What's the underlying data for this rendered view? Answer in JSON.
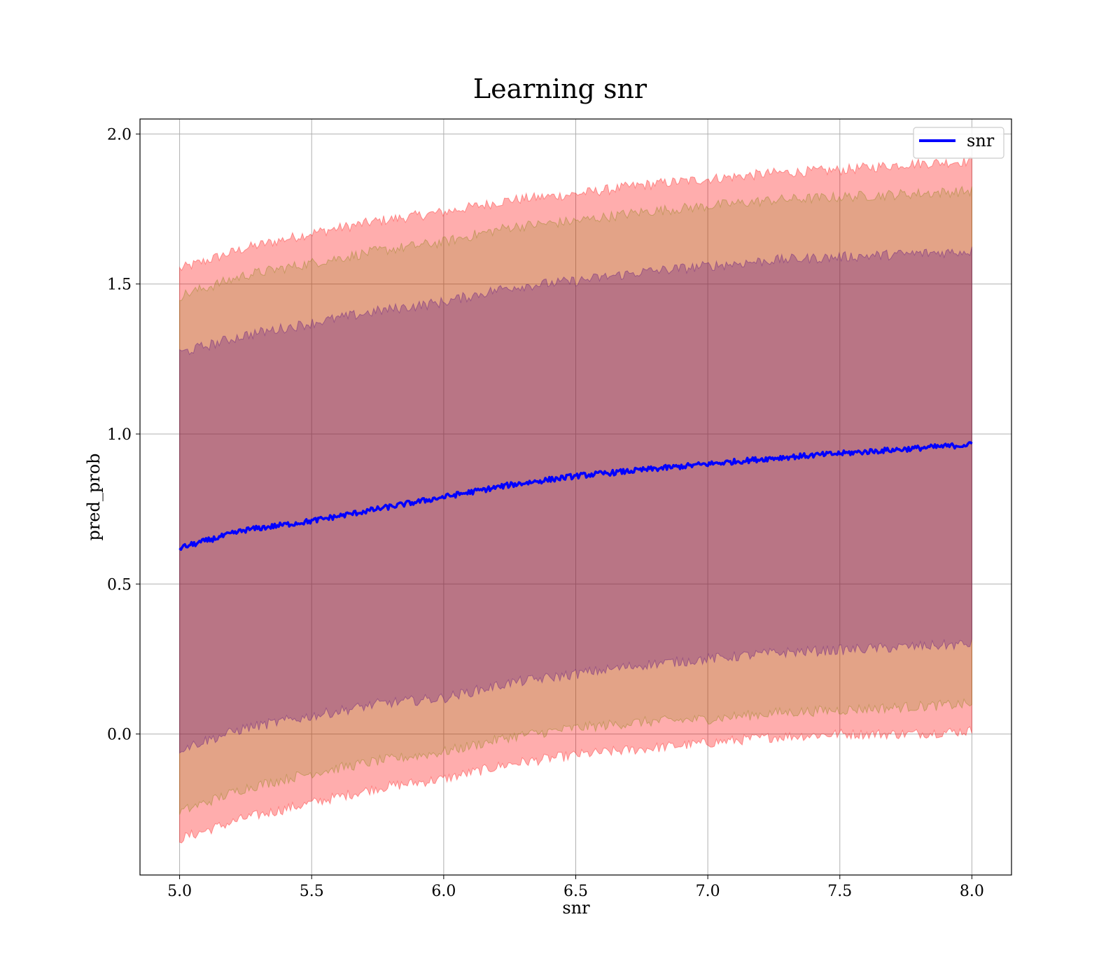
{
  "chart_data": {
    "type": "line",
    "title": "Learning snr",
    "xlabel": "snr",
    "ylabel": "pred_prob",
    "xlim": [
      4.85,
      8.15
    ],
    "ylim": [
      -0.47,
      2.05
    ],
    "grid": true,
    "legend_placement": "top-right",
    "x_ticks": [
      5.0,
      5.5,
      6.0,
      6.5,
      7.0,
      7.5,
      8.0
    ],
    "x_tick_labels": [
      "5.0",
      "5.5",
      "6.0",
      "6.5",
      "7.0",
      "7.5",
      "8.0"
    ],
    "y_ticks": [
      0.0,
      0.5,
      1.0,
      1.5,
      2.0
    ],
    "y_tick_labels": [
      "0.0",
      "0.5",
      "1.0",
      "1.5",
      "2.0"
    ],
    "series": [
      {
        "name": "snr",
        "color": "#0000ff",
        "x": [
          5.0,
          5.25,
          5.5,
          5.75,
          6.0,
          6.25,
          6.5,
          6.75,
          7.0,
          7.25,
          7.5,
          7.75,
          8.0
        ],
        "values": [
          0.62,
          0.68,
          0.71,
          0.75,
          0.79,
          0.83,
          0.86,
          0.88,
          0.9,
          0.92,
          0.935,
          0.95,
          0.965
        ]
      }
    ],
    "bands": [
      {
        "color": "#ff0000",
        "opacity": 0.32,
        "x": [
          5.0,
          5.25,
          5.5,
          5.75,
          6.0,
          6.25,
          6.5,
          6.75,
          7.0,
          7.25,
          7.5,
          7.75,
          8.0
        ],
        "lower": [
          -0.35,
          -0.28,
          -0.23,
          -0.18,
          -0.15,
          -0.1,
          -0.07,
          -0.05,
          -0.03,
          -0.01,
          0.0,
          0.0,
          0.01
        ],
        "upper": [
          1.55,
          1.62,
          1.67,
          1.71,
          1.74,
          1.78,
          1.8,
          1.83,
          1.85,
          1.87,
          1.88,
          1.9,
          1.91
        ]
      },
      {
        "color": "#7f7f00",
        "opacity": 0.22,
        "x": [
          5.0,
          5.25,
          5.5,
          5.75,
          6.0,
          6.25,
          6.5,
          6.75,
          7.0,
          7.25,
          7.5,
          7.75,
          8.0
        ],
        "lower": [
          -0.26,
          -0.18,
          -0.13,
          -0.09,
          -0.06,
          -0.01,
          0.02,
          0.04,
          0.05,
          0.07,
          0.08,
          0.09,
          0.1
        ],
        "upper": [
          1.46,
          1.53,
          1.57,
          1.61,
          1.64,
          1.69,
          1.71,
          1.74,
          1.76,
          1.78,
          1.79,
          1.8,
          1.81
        ]
      },
      {
        "color": "#4b0082",
        "opacity": 0.28,
        "x": [
          5.0,
          5.25,
          5.5,
          5.75,
          6.0,
          6.25,
          6.5,
          6.75,
          7.0,
          7.25,
          7.5,
          7.75,
          8.0
        ],
        "lower": [
          -0.05,
          0.02,
          0.06,
          0.1,
          0.12,
          0.17,
          0.2,
          0.23,
          0.25,
          0.27,
          0.28,
          0.29,
          0.3
        ],
        "upper": [
          1.27,
          1.33,
          1.37,
          1.41,
          1.44,
          1.49,
          1.51,
          1.54,
          1.56,
          1.58,
          1.59,
          1.6,
          1.61
        ]
      }
    ]
  }
}
